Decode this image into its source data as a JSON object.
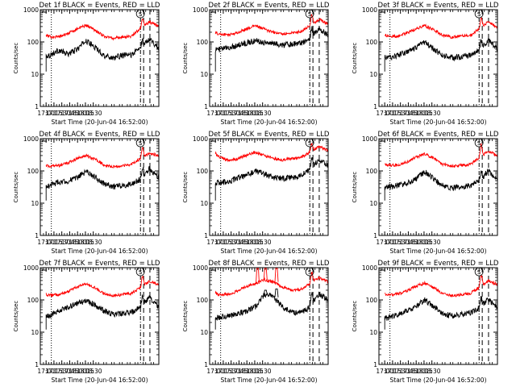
{
  "figure": {
    "background": "#ffffff",
    "axis_color": "#000000",
    "events_color": "#000000",
    "lld_color": "#ff0000"
  },
  "chart_data": [
    {
      "type": "line",
      "title": "Det 1f BLACK = Events, RED = LLD",
      "ylabel": "Counts/sec",
      "xlabel": "Start Time (20-Jun-04 16:52:00)",
      "x_tick_labels": [
        "17:00",
        "17:15",
        "17:30",
        "17:45",
        "18:00",
        "18:15",
        "18:30"
      ],
      "y_tick_labels": [
        "1",
        "10",
        "100",
        "1000"
      ],
      "yscale": "log",
      "ylim": [
        1,
        1000
      ],
      "xlim_minutes": [
        -3,
        223
      ],
      "annotation": "S",
      "dotted_line_min": 18,
      "dashdot_line_min": 188,
      "dashed_lines_min": [
        194,
        206
      ],
      "event_onset_min": 8,
      "series": [
        {
          "name": "Events",
          "color": "#000000",
          "level": [
            38,
            38,
            55,
            42,
            58,
            110,
            68,
            38,
            32,
            38,
            40,
            66,
            130,
            60
          ],
          "flare_peak": 110
        },
        {
          "name": "LLD",
          "color": "#ff0000",
          "level": [
            190,
            145,
            145,
            180,
            250,
            330,
            235,
            150,
            130,
            140,
            150,
            260,
            420,
            300
          ],
          "flare_peak": 560
        }
      ]
    },
    {
      "type": "line",
      "title": "Det 2f BLACK = Events, RED = LLD",
      "ylabel": "Counts/sec",
      "xlabel": "Start Time (20-Jun-04 16:52:00)",
      "x_tick_labels": [
        "17:00",
        "17:15",
        "17:30",
        "17:45",
        "18:00",
        "18:15",
        "18:30"
      ],
      "y_tick_labels": [
        "1",
        "10",
        "100",
        "1000"
      ],
      "yscale": "log",
      "ylim": [
        1,
        1000
      ],
      "xlim_minutes": [
        -3,
        223
      ],
      "annotation": "S",
      "dotted_line_min": 18,
      "dashdot_line_min": 188,
      "dashed_lines_min": [
        194,
        206
      ],
      "event_onset_min": 8,
      "series": [
        {
          "name": "Events",
          "color": "#000000",
          "level": [
            60,
            58,
            65,
            78,
            92,
            110,
            98,
            88,
            82,
            86,
            92,
            130,
            260,
            160
          ],
          "flare_peak": 260
        },
        {
          "name": "LLD",
          "color": "#ff0000",
          "level": [
            230,
            175,
            165,
            190,
            250,
            320,
            250,
            195,
            180,
            190,
            210,
            320,
            500,
            360
          ],
          "flare_peak": 700
        }
      ]
    },
    {
      "type": "line",
      "title": "Det 3f BLACK = Events, RED = LLD",
      "ylabel": "Counts/sec",
      "xlabel": "Start Time (20-Jun-04 16:52:00)",
      "x_tick_labels": [
        "17:00",
        "17:15",
        "17:30",
        "17:45",
        "18:00",
        "18:15",
        "18:30"
      ],
      "y_tick_labels": [
        "1",
        "10",
        "100",
        "1000"
      ],
      "yscale": "log",
      "ylim": [
        1,
        1000
      ],
      "xlim_minutes": [
        -3,
        223
      ],
      "annotation": "S",
      "dotted_line_min": 18,
      "dashdot_line_min": 188,
      "dashed_lines_min": [
        194,
        206
      ],
      "event_onset_min": 8,
      "series": [
        {
          "name": "Events",
          "color": "#000000",
          "level": [
            35,
            32,
            38,
            48,
            62,
            100,
            60,
            38,
            32,
            35,
            38,
            55,
            110,
            60
          ],
          "flare_peak": 110
        },
        {
          "name": "LLD",
          "color": "#ff0000",
          "level": [
            195,
            150,
            150,
            185,
            250,
            320,
            240,
            160,
            140,
            150,
            160,
            250,
            420,
            280
          ],
          "flare_peak": 580
        }
      ]
    },
    {
      "type": "line",
      "title": "Det 4f BLACK = Events, RED = LLD",
      "ylabel": "Counts/sec",
      "xlabel": "Start Time (20-Jun-04 16:52:00)",
      "x_tick_labels": [
        "17:00",
        "17:15",
        "17:30",
        "17:45",
        "18:00",
        "18:15",
        "18:30"
      ],
      "y_tick_labels": [
        "1",
        "10",
        "100",
        "1000"
      ],
      "yscale": "log",
      "ylim": [
        1,
        1000
      ],
      "xlim_minutes": [
        -3,
        223
      ],
      "annotation": "S",
      "dotted_line_min": 18,
      "dashdot_line_min": 188,
      "dashed_lines_min": [
        194,
        206
      ],
      "event_onset_min": 8,
      "series": [
        {
          "name": "Events",
          "color": "#000000",
          "level": [
            28,
            35,
            45,
            48,
            60,
            95,
            65,
            40,
            32,
            35,
            40,
            55,
            120,
            60
          ],
          "flare_peak": 120
        },
        {
          "name": "LLD",
          "color": "#ff0000",
          "level": [
            150,
            140,
            145,
            175,
            240,
            300,
            230,
            155,
            135,
            145,
            160,
            240,
            350,
            300
          ],
          "flare_peak": 520
        }
      ]
    },
    {
      "type": "line",
      "title": "Det 5f BLACK = Events, RED = LLD",
      "ylabel": "Counts/sec",
      "xlabel": "Start Time (20-Jun-04 16:52:00)",
      "x_tick_labels": [
        "17:00",
        "17:15",
        "17:30",
        "17:45",
        "18:00",
        "18:15",
        "18:30"
      ],
      "y_tick_labels": [
        "1",
        "10",
        "100",
        "1000"
      ],
      "yscale": "log",
      "ylim": [
        1,
        1000
      ],
      "xlim_minutes": [
        -3,
        223
      ],
      "annotation": "S",
      "dotted_line_min": 18,
      "dashdot_line_min": 188,
      "dashed_lines_min": [
        194,
        206
      ],
      "event_onset_min": 8,
      "series": [
        {
          "name": "Events",
          "color": "#000000",
          "level": [
            50,
            42,
            48,
            58,
            70,
            100,
            80,
            62,
            58,
            62,
            72,
            110,
            230,
            150
          ],
          "flare_peak": 230
        },
        {
          "name": "LLD",
          "color": "#ff0000",
          "level": [
            550,
            280,
            210,
            230,
            300,
            380,
            300,
            240,
            220,
            240,
            260,
            380,
            560,
            420
          ],
          "flare_peak": 700
        }
      ]
    },
    {
      "type": "line",
      "title": "Det 6f BLACK = Events, RED = LLD",
      "ylabel": "Counts/sec",
      "xlabel": "Start Time (20-Jun-04 16:52:00)",
      "x_tick_labels": [
        "17:00",
        "17:15",
        "17:30",
        "17:45",
        "18:00",
        "18:15",
        "18:30"
      ],
      "y_tick_labels": [
        "1",
        "10",
        "100",
        "1000"
      ],
      "yscale": "log",
      "ylim": [
        1,
        1000
      ],
      "xlim_minutes": [
        -3,
        223
      ],
      "annotation": "S",
      "dotted_line_min": 18,
      "dashdot_line_min": 188,
      "dashed_lines_min": [
        194,
        206
      ],
      "event_onset_min": 8,
      "series": [
        {
          "name": "Events",
          "color": "#000000",
          "level": [
            30,
            32,
            35,
            40,
            55,
            95,
            58,
            35,
            30,
            32,
            35,
            50,
            100,
            50
          ],
          "flare_peak": 100
        },
        {
          "name": "LLD",
          "color": "#ff0000",
          "level": [
            200,
            150,
            150,
            185,
            260,
            330,
            250,
            160,
            140,
            150,
            160,
            250,
            420,
            290
          ],
          "flare_peak": 640
        }
      ]
    },
    {
      "type": "line",
      "title": "Det 7f BLACK = Events, RED = LLD",
      "ylabel": "Counts/sec",
      "xlabel": "Start Time (20-Jun-04 16:52:00)",
      "x_tick_labels": [
        "17:00",
        "17:15",
        "17:30",
        "17:45",
        "18:00",
        "18:15",
        "18:30"
      ],
      "y_tick_labels": [
        "1",
        "10",
        "100",
        "1000"
      ],
      "yscale": "log",
      "ylim": [
        1,
        1000
      ],
      "xlim_minutes": [
        -3,
        223
      ],
      "annotation": "S",
      "dotted_line_min": 18,
      "dashdot_line_min": 188,
      "dashed_lines_min": [
        194,
        206
      ],
      "event_onset_min": 8,
      "series": [
        {
          "name": "Events",
          "color": "#000000",
          "level": [
            25,
            32,
            45,
            60,
            75,
            95,
            70,
            45,
            35,
            38,
            42,
            60,
            120,
            60
          ],
          "flare_peak": 120
        },
        {
          "name": "LLD",
          "color": "#ff0000",
          "level": [
            170,
            140,
            145,
            180,
            250,
            320,
            240,
            155,
            135,
            145,
            160,
            240,
            380,
            300
          ],
          "flare_peak": 560
        }
      ]
    },
    {
      "type": "line",
      "title": "Det 8f BLACK = Events, RED = LLD",
      "ylabel": "Counts/sec",
      "xlabel": "Start Time (20-Jun-04 16:52:00)",
      "x_tick_labels": [
        "17:00",
        "17:15",
        "17:30",
        "17:45",
        "18:00",
        "18:15",
        "18:30"
      ],
      "y_tick_labels": [
        "1",
        "10",
        "100",
        "1000"
      ],
      "yscale": "log",
      "ylim": [
        1,
        1000
      ],
      "xlim_minutes": [
        -3,
        223
      ],
      "annotation": "S",
      "dotted_line_min": 18,
      "dashdot_line_min": 188,
      "dashed_lines_min": [
        194,
        206
      ],
      "event_onset_min": 8,
      "series": [
        {
          "name": "Events",
          "color": "#000000",
          "level": [
            30,
            28,
            32,
            36,
            45,
            60,
            150,
            120,
            60,
            42,
            40,
            60,
            150,
            100
          ],
          "flare_peak": 150,
          "spikes": [
            {
              "x_min": 102,
              "value": 200
            },
            {
              "x_min": 123,
              "value": 220
            }
          ]
        },
        {
          "name": "LLD",
          "color": "#ff0000",
          "level": [
            190,
            150,
            150,
            185,
            260,
            320,
            420,
            360,
            250,
            200,
            210,
            320,
            480,
            360
          ],
          "flare_peak": 700,
          "spikes": [
            {
              "x_min": 87,
              "value": 1000
            },
            {
              "x_min": 102,
              "value": 1000
            },
            {
              "x_min": 123,
              "value": 1000
            }
          ]
        }
      ]
    },
    {
      "type": "line",
      "title": "Det 9f BLACK = Events, RED = LLD",
      "ylabel": "Counts/sec",
      "xlabel": "Start Time (20-Jun-04 16:52:00)",
      "x_tick_labels": [
        "17:00",
        "17:15",
        "17:30",
        "17:45",
        "18:00",
        "18:15",
        "18:30"
      ],
      "y_tick_labels": [
        "1",
        "10",
        "100",
        "1000"
      ],
      "yscale": "log",
      "ylim": [
        1,
        1000
      ],
      "xlim_minutes": [
        -3,
        223
      ],
      "annotation": "S",
      "dotted_line_min": 18,
      "dashdot_line_min": 188,
      "dashed_lines_min": [
        194,
        206
      ],
      "event_onset_min": 8,
      "series": [
        {
          "name": "Events",
          "color": "#000000",
          "level": [
            28,
            28,
            35,
            45,
            60,
            100,
            62,
            38,
            32,
            35,
            40,
            58,
            110,
            55
          ],
          "flare_peak": 110
        },
        {
          "name": "LLD",
          "color": "#ff0000",
          "level": [
            180,
            145,
            150,
            185,
            260,
            330,
            240,
            155,
            135,
            145,
            160,
            245,
            400,
            300
          ],
          "flare_peak": 600
        }
      ]
    }
  ]
}
